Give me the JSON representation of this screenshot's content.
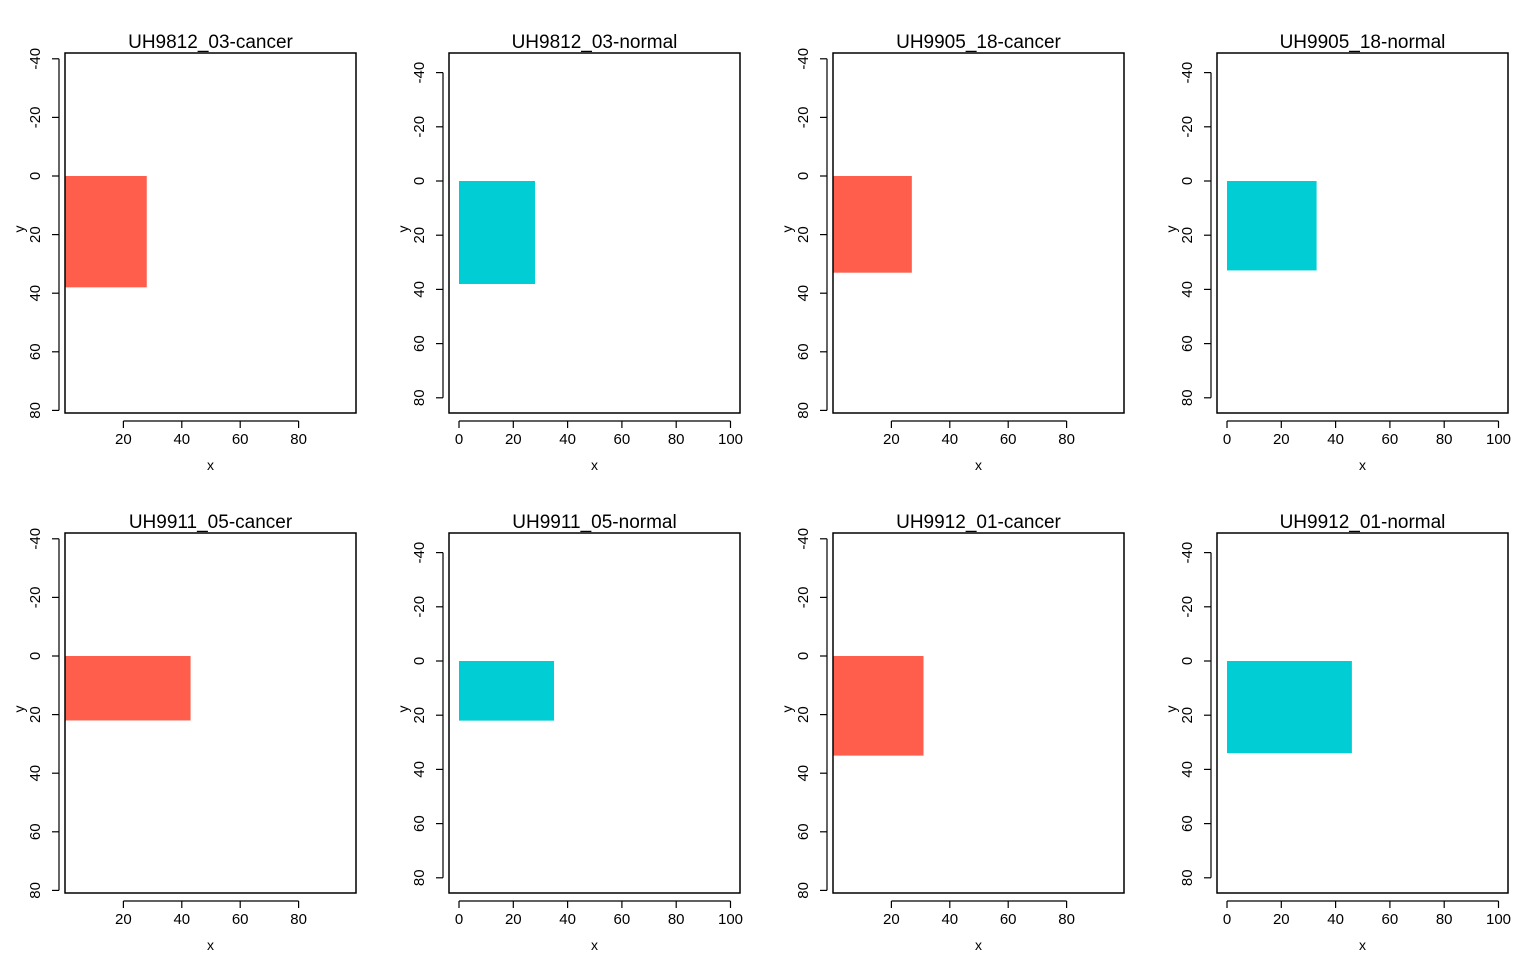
{
  "figure": {
    "colors": {
      "cancer": "#FF5E4D",
      "normal": "#00CED4",
      "axis": "#000000",
      "background": "#ffffff"
    }
  },
  "chart_data": [
    {
      "type": "heatmap",
      "title": "UH9812_03-cancer",
      "xlabel": "x",
      "ylabel": "y",
      "xlim": [
        0,
        100
      ],
      "ylim": [
        -40,
        80
      ],
      "y_reversed": true,
      "grid": false,
      "xticks": [
        20,
        40,
        60,
        80
      ],
      "yticks": [
        -40,
        -20,
        0,
        20,
        40,
        60,
        80
      ],
      "region": {
        "x": [
          0,
          28
        ],
        "y": [
          0,
          38
        ],
        "color": "#FF5E4D"
      }
    },
    {
      "type": "heatmap",
      "title": "UH9812_03-normal",
      "xlabel": "x",
      "ylabel": "y",
      "xlim": [
        0,
        100
      ],
      "ylim": [
        -40,
        80
      ],
      "y_reversed": true,
      "grid": false,
      "xticks": [
        0,
        20,
        40,
        60,
        80,
        100
      ],
      "yticks": [
        -40,
        -20,
        0,
        20,
        40,
        60,
        80
      ],
      "region": {
        "x": [
          0,
          28
        ],
        "y": [
          0,
          38
        ],
        "color": "#00CED4"
      }
    },
    {
      "type": "heatmap",
      "title": "UH9905_18-cancer",
      "xlabel": "x",
      "ylabel": "y",
      "xlim": [
        0,
        100
      ],
      "ylim": [
        -40,
        80
      ],
      "y_reversed": true,
      "grid": false,
      "xticks": [
        20,
        40,
        60,
        80
      ],
      "yticks": [
        -40,
        -20,
        0,
        20,
        40,
        60,
        80
      ],
      "region": {
        "x": [
          0,
          27
        ],
        "y": [
          0,
          33
        ],
        "color": "#FF5E4D"
      }
    },
    {
      "type": "heatmap",
      "title": "UH9905_18-normal",
      "xlabel": "x",
      "ylabel": "y",
      "xlim": [
        0,
        100
      ],
      "ylim": [
        -40,
        80
      ],
      "y_reversed": true,
      "grid": false,
      "xticks": [
        0,
        20,
        40,
        60,
        80,
        100
      ],
      "yticks": [
        -40,
        -20,
        0,
        20,
        40,
        60,
        80
      ],
      "region": {
        "x": [
          0,
          33
        ],
        "y": [
          0,
          33
        ],
        "color": "#00CED4"
      }
    },
    {
      "type": "heatmap",
      "title": "UH9911_05-cancer",
      "xlabel": "x",
      "ylabel": "y",
      "xlim": [
        0,
        100
      ],
      "ylim": [
        -40,
        80
      ],
      "y_reversed": true,
      "grid": false,
      "xticks": [
        20,
        40,
        60,
        80
      ],
      "yticks": [
        -40,
        -20,
        0,
        20,
        40,
        60,
        80
      ],
      "region": {
        "x": [
          0,
          43
        ],
        "y": [
          0,
          22
        ],
        "color": "#FF5E4D"
      }
    },
    {
      "type": "heatmap",
      "title": "UH9911_05-normal",
      "xlabel": "x",
      "ylabel": "y",
      "xlim": [
        0,
        100
      ],
      "ylim": [
        -40,
        80
      ],
      "y_reversed": true,
      "grid": false,
      "xticks": [
        0,
        20,
        40,
        60,
        80,
        100
      ],
      "yticks": [
        -40,
        -20,
        0,
        20,
        40,
        60,
        80
      ],
      "region": {
        "x": [
          0,
          35
        ],
        "y": [
          0,
          22
        ],
        "color": "#00CED4"
      }
    },
    {
      "type": "heatmap",
      "title": "UH9912_01-cancer",
      "xlabel": "x",
      "ylabel": "y",
      "xlim": [
        0,
        100
      ],
      "ylim": [
        -40,
        80
      ],
      "y_reversed": true,
      "grid": false,
      "xticks": [
        20,
        40,
        60,
        80
      ],
      "yticks": [
        -40,
        -20,
        0,
        20,
        40,
        60,
        80
      ],
      "region": {
        "x": [
          0,
          31
        ],
        "y": [
          0,
          34
        ],
        "color": "#FF5E4D"
      }
    },
    {
      "type": "heatmap",
      "title": "UH9912_01-normal",
      "xlabel": "x",
      "ylabel": "y",
      "xlim": [
        0,
        100
      ],
      "ylim": [
        -40,
        80
      ],
      "y_reversed": true,
      "grid": false,
      "xticks": [
        0,
        20,
        40,
        60,
        80,
        100
      ],
      "yticks": [
        -40,
        -20,
        0,
        20,
        40,
        60,
        80
      ],
      "region": {
        "x": [
          0,
          46
        ],
        "y": [
          0,
          34
        ],
        "color": "#00CED4"
      }
    }
  ]
}
